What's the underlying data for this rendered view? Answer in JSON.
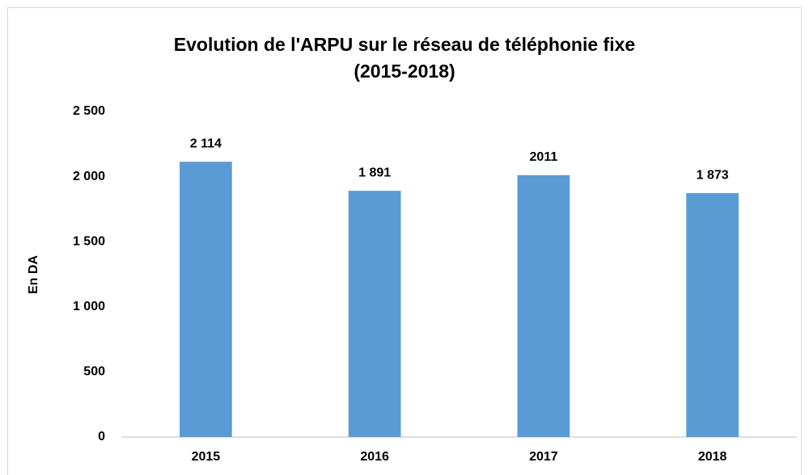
{
  "chart_data": {
    "type": "bar",
    "title": [
      "Evolution de l'ARPU sur le réseau de téléphonie fixe",
      "(2015-2018)"
    ],
    "y_label": "En DA",
    "categories": [
      "2015",
      "2016",
      "2017",
      "2018"
    ],
    "values": [
      2114,
      1891,
      2011,
      1873
    ],
    "value_labels": [
      "2 114",
      "1 891",
      "2011",
      "1 873"
    ],
    "color": "#5b9bd5",
    "ylim": [
      0,
      2500
    ],
    "yticks": [
      0,
      500,
      {
        "value": 1000,
        "label": "1 000"
      },
      {
        "value": 1500,
        "label": "1 500"
      },
      {
        "value": 2000,
        "label": "2 000"
      },
      {
        "value": 2500,
        "label": "2 500"
      }
    ],
    "grid": false
  }
}
